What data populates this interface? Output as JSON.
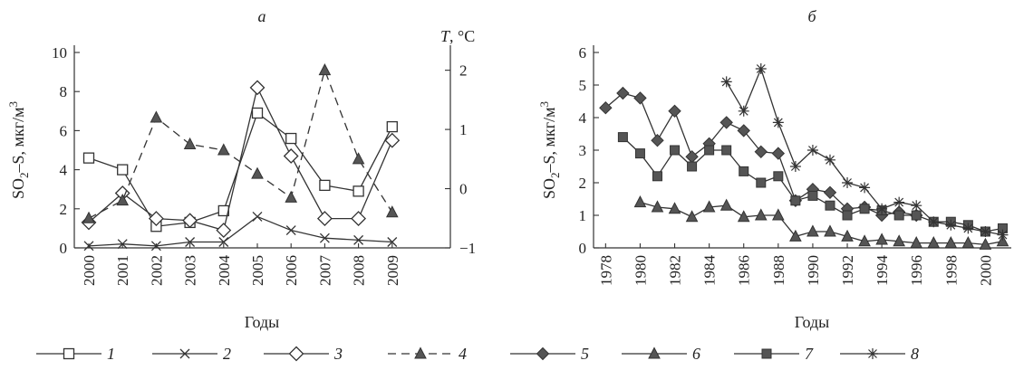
{
  "chart_data": [
    {
      "type": "line",
      "panel_label": "а",
      "xlabel": "Годы",
      "ylabel": "SO2–S, мкг/м3",
      "ylabel_parts": {
        "base": "SO",
        "sub": "2",
        "mid": "–S, мкг/м",
        "sup": "3"
      },
      "y2label": "T, °C",
      "y2label_parts": {
        "var": "T",
        "unit": ", °C"
      },
      "x": [
        2000,
        2001,
        2002,
        2003,
        2004,
        2005,
        2006,
        2007,
        2008,
        2009
      ],
      "ylim": [
        0,
        10
      ],
      "yticks": [
        0,
        2,
        4,
        6,
        8,
        10
      ],
      "y2lim": [
        -1,
        2.3
      ],
      "y2ticks": [
        -1,
        0,
        1,
        2
      ],
      "series": [
        {
          "name": "1",
          "marker": "open-square",
          "dash": false,
          "axis": "left",
          "values": [
            4.6,
            4.0,
            1.1,
            1.3,
            1.9,
            6.9,
            5.6,
            3.2,
            2.9,
            6.2
          ]
        },
        {
          "name": "2",
          "marker": "x",
          "dash": false,
          "axis": "left",
          "values": [
            0.1,
            0.2,
            0.1,
            0.3,
            0.3,
            1.6,
            0.9,
            0.5,
            0.4,
            0.3
          ]
        },
        {
          "name": "3",
          "marker": "open-diamond",
          "dash": false,
          "axis": "left",
          "values": [
            1.3,
            2.8,
            1.5,
            1.4,
            0.9,
            8.2,
            4.7,
            1.5,
            1.5,
            5.5
          ]
        },
        {
          "name": "4",
          "marker": "triangle",
          "dash": true,
          "axis": "right",
          "values": [
            -0.5,
            -0.2,
            1.2,
            0.75,
            0.65,
            0.25,
            -0.15,
            2.0,
            0.5,
            -0.4
          ]
        }
      ]
    },
    {
      "type": "line",
      "panel_label": "б",
      "xlabel": "Годы",
      "ylabel": "SO2–S, мкг/м3",
      "ylabel_parts": {
        "base": "SO",
        "sub": "2",
        "mid": "–S, мкг/м",
        "sup": "3"
      },
      "xlim": [
        1977.3,
        2001.5
      ],
      "xticks": [
        1978,
        1980,
        1982,
        1984,
        1986,
        1988,
        1990,
        1992,
        1994,
        1996,
        1998,
        2000
      ],
      "ylim": [
        0,
        6
      ],
      "yticks": [
        0,
        1,
        2,
        3,
        4,
        5,
        6
      ],
      "series": [
        {
          "name": "5",
          "marker": "diamond",
          "dash": false,
          "x": [
            1978,
            1979,
            1980,
            1981,
            1982,
            1983,
            1984,
            1985,
            1986,
            1987,
            1988,
            1989,
            1990,
            1991,
            1992,
            1993,
            1994,
            1995,
            1996
          ],
          "values": [
            4.3,
            4.75,
            4.6,
            3.3,
            4.2,
            2.8,
            3.2,
            3.85,
            3.6,
            2.95,
            2.9,
            1.45,
            1.8,
            1.7,
            1.2,
            1.25,
            1.0,
            1.1,
            1.0
          ]
        },
        {
          "name": "6",
          "marker": "triangle",
          "dash": false,
          "x": [
            1980,
            1981,
            1982,
            1983,
            1984,
            1985,
            1986,
            1987,
            1988,
            1989,
            1990,
            1991,
            1992,
            1993,
            1994,
            1995,
            1996,
            1997,
            1998,
            1999,
            2000,
            2001
          ],
          "values": [
            1.4,
            1.25,
            1.2,
            0.95,
            1.25,
            1.3,
            0.95,
            1.0,
            1.0,
            0.35,
            0.5,
            0.5,
            0.35,
            0.2,
            0.25,
            0.2,
            0.15,
            0.15,
            0.15,
            0.15,
            0.1,
            0.2
          ]
        },
        {
          "name": "7",
          "marker": "square",
          "dash": false,
          "x": [
            1979,
            1980,
            1981,
            1982,
            1983,
            1984,
            1985,
            1986,
            1987,
            1988,
            1989,
            1990,
            1991,
            1992,
            1993,
            1994,
            1995,
            1996,
            1997,
            1998,
            1999,
            2000,
            2001
          ],
          "values": [
            3.4,
            2.9,
            2.2,
            3.0,
            2.5,
            3.0,
            3.0,
            2.35,
            2.0,
            2.2,
            1.45,
            1.6,
            1.3,
            1.0,
            1.2,
            1.15,
            1.0,
            1.0,
            0.8,
            0.8,
            0.7,
            0.5,
            0.6
          ]
        },
        {
          "name": "8",
          "marker": "star",
          "dash": false,
          "x": [
            1985,
            1986,
            1987,
            1988,
            1989,
            1990,
            1991,
            1992,
            1993,
            1994,
            1995,
            1996,
            1997,
            1998,
            1999,
            2000,
            2001
          ],
          "values": [
            5.1,
            4.2,
            5.5,
            3.85,
            2.5,
            3.0,
            2.7,
            2.0,
            1.85,
            1.2,
            1.4,
            1.3,
            0.8,
            0.7,
            0.6,
            0.5,
            0.4
          ]
        }
      ]
    }
  ],
  "legend": [
    {
      "label": "1",
      "marker": "open-square",
      "dash": false
    },
    {
      "label": "2",
      "marker": "x",
      "dash": false
    },
    {
      "label": "3",
      "marker": "open-diamond",
      "dash": false
    },
    {
      "label": "4",
      "marker": "triangle",
      "dash": true
    },
    {
      "label": "5",
      "marker": "diamond",
      "dash": false
    },
    {
      "label": "6",
      "marker": "triangle",
      "dash": false
    },
    {
      "label": "7",
      "marker": "square",
      "dash": false
    },
    {
      "label": "8",
      "marker": "star",
      "dash": false
    }
  ],
  "colors": {
    "ink": "#333333",
    "marker_fill": "#555555",
    "open_fill": "#ffffff"
  }
}
